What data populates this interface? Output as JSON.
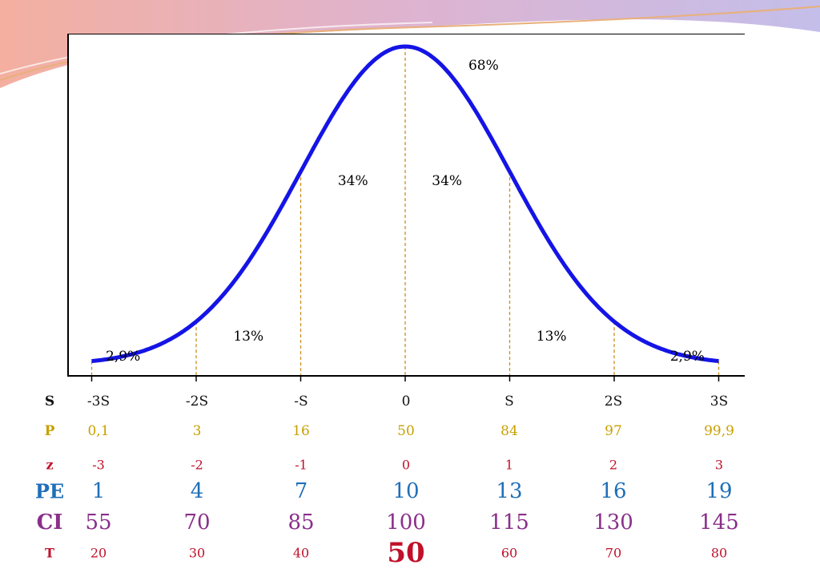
{
  "chart_data": {
    "type": "line",
    "title": "",
    "xlabel": "",
    "ylabel": "",
    "xlim": [
      -3,
      3
    ],
    "x_ticks": [
      -3,
      -2,
      -1,
      0,
      1,
      2,
      3
    ],
    "series": [
      {
        "values_description_free": true,
        "x": [
          -3.0,
          -2.5,
          -2.0,
          -1.5,
          -1.0,
          -0.5,
          0.0,
          0.5,
          1.0,
          1.5,
          2.0,
          2.5,
          3.0
        ],
        "y": [
          0.0044,
          0.0175,
          0.054,
          0.1295,
          0.242,
          0.352,
          0.399,
          0.352,
          0.242,
          0.1295,
          0.054,
          0.0175,
          0.0044
        ]
      }
    ],
    "color": "#1414e6",
    "guide_color": "#c89020",
    "area_labels": [
      {
        "text": "68%",
        "x": 0.75,
        "y": 0.365
      },
      {
        "text": "34%",
        "x": -0.5,
        "y": 0.22
      },
      {
        "text": "34%",
        "x": 0.4,
        "y": 0.22
      },
      {
        "text": "13%",
        "x": -1.5,
        "y": 0.025
      },
      {
        "text": "13%",
        "x": 1.4,
        "y": 0.025
      },
      {
        "text": "2,9%",
        "x": -2.7,
        "y": 0.0
      },
      {
        "text": "2,9%",
        "x": 2.7,
        "y": 0.0
      }
    ]
  },
  "table": {
    "rows": [
      {
        "key": "S",
        "label": "S",
        "values": [
          "-3S",
          "-2S",
          "-S",
          "0",
          "S",
          "2S",
          "3S"
        ]
      },
      {
        "key": "P",
        "label": "P",
        "values": [
          "0,1",
          "3",
          "16",
          "50",
          "84",
          "97",
          "99,9"
        ]
      },
      {
        "key": "z",
        "label": "z",
        "values": [
          "-3",
          "-2",
          "-1",
          "0",
          "1",
          "2",
          "3"
        ]
      },
      {
        "key": "PE",
        "label": "PE",
        "values": [
          "1",
          "4",
          "7",
          "10",
          "13",
          "16",
          "19"
        ]
      },
      {
        "key": "CI",
        "label": "CI",
        "values": [
          "55",
          "70",
          "85",
          "100",
          "115",
          "130",
          "145"
        ]
      },
      {
        "key": "T",
        "label": "T",
        "values": [
          "20",
          "30",
          "40",
          "50",
          "60",
          "70",
          "80"
        ]
      }
    ]
  }
}
